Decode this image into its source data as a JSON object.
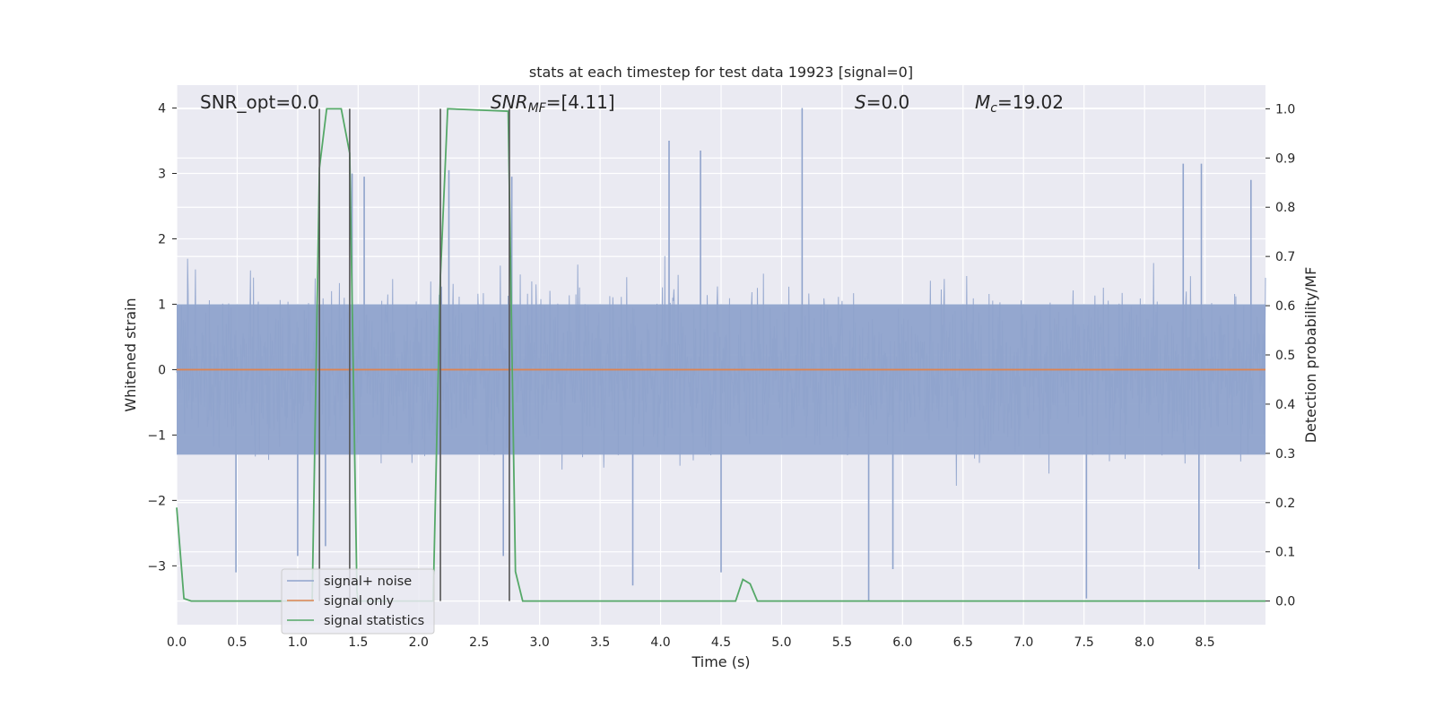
{
  "chart_data": {
    "type": "line",
    "title": "stats at each timestep for test data 19923 [signal=0]",
    "xlabel": "Time (s)",
    "ylabel_left": "Whitened strain",
    "ylabel_right": "Detection probability/MF",
    "xlim": [
      0.0,
      9.0
    ],
    "ylim_left": [
      -3.9,
      4.35
    ],
    "ylim_right": [
      -0.048,
      1.048
    ],
    "grid": true,
    "legend_placement": "lower-left",
    "xticks": [
      "0.0",
      "0.5",
      "1.0",
      "1.5",
      "2.0",
      "2.5",
      "3.0",
      "3.5",
      "4.0",
      "4.5",
      "5.0",
      "5.5",
      "6.0",
      "6.5",
      "7.0",
      "7.5",
      "8.0",
      "8.5"
    ],
    "yticks_left": [
      "4",
      "3",
      "2",
      "1",
      "0",
      "−1",
      "−2",
      "−3"
    ],
    "yticks_right": [
      "1.0",
      "0.9",
      "0.8",
      "0.7",
      "0.6",
      "0.5",
      "0.4",
      "0.3",
      "0.2",
      "0.1",
      "0.0"
    ],
    "annotations": {
      "snr_opt": "SNR_opt=0.0",
      "snr_mf_base": "SNR",
      "snr_mf_sub": "MF",
      "snr_mf_value": "=[4.11]",
      "s_symbol": "S",
      "s_value": "=0.0",
      "mc_symbol": "M",
      "mc_sub": "c",
      "mc_value": "=19.02"
    },
    "legend": [
      {
        "label": "signal+ noise",
        "color": "#8fa3cc"
      },
      {
        "label": "signal only",
        "color": "#dd8452"
      },
      {
        "label": "signal statistics",
        "color": "#55a868"
      }
    ],
    "series": [
      {
        "name": "signal+ noise",
        "axis": "left",
        "color": "#8fa3cc",
        "kind": "noise",
        "core_band": [
          -1.3,
          1.0
        ],
        "spread": 2.2,
        "spikes": [
          {
            "x": 0.49,
            "y": -3.1
          },
          {
            "x": 1.0,
            "y": -2.85
          },
          {
            "x": 1.23,
            "y": -2.7
          },
          {
            "x": 1.45,
            "y": 3.0
          },
          {
            "x": 1.55,
            "y": 2.95
          },
          {
            "x": 2.25,
            "y": 3.05
          },
          {
            "x": 2.7,
            "y": -2.85
          },
          {
            "x": 2.77,
            "y": 2.95
          },
          {
            "x": 3.77,
            "y": -3.3
          },
          {
            "x": 4.07,
            "y": 3.5
          },
          {
            "x": 4.33,
            "y": 3.35
          },
          {
            "x": 4.5,
            "y": -3.1
          },
          {
            "x": 5.17,
            "y": 4.0
          },
          {
            "x": 5.72,
            "y": -3.55
          },
          {
            "x": 5.92,
            "y": -3.05
          },
          {
            "x": 7.52,
            "y": -3.5
          },
          {
            "x": 8.32,
            "y": 3.15
          },
          {
            "x": 8.45,
            "y": -3.05
          },
          {
            "x": 8.47,
            "y": 3.15
          },
          {
            "x": 8.88,
            "y": 2.9
          }
        ]
      },
      {
        "name": "signal only",
        "axis": "left",
        "color": "#dd8452",
        "x": [
          0.0,
          9.0
        ],
        "y": [
          0.0,
          0.0
        ]
      },
      {
        "name": "signal statistics",
        "axis": "right",
        "color": "#55a868",
        "x": [
          0.0,
          0.06,
          0.12,
          1.12,
          1.18,
          1.24,
          1.36,
          1.43,
          1.49,
          1.5,
          2.12,
          2.18,
          2.24,
          2.74,
          2.8,
          2.86,
          4.62,
          4.68,
          4.74,
          4.8,
          9.0
        ],
        "y": [
          0.19,
          0.005,
          0.0,
          0.0,
          0.88,
          1.0,
          1.0,
          0.91,
          0.02,
          0.0,
          0.0,
          0.66,
          1.0,
          0.995,
          0.06,
          0.0,
          0.0,
          0.044,
          0.035,
          0.0,
          0.0
        ]
      }
    ],
    "vertical_lines": [
      1.18,
      1.43,
      2.18,
      2.75
    ]
  }
}
